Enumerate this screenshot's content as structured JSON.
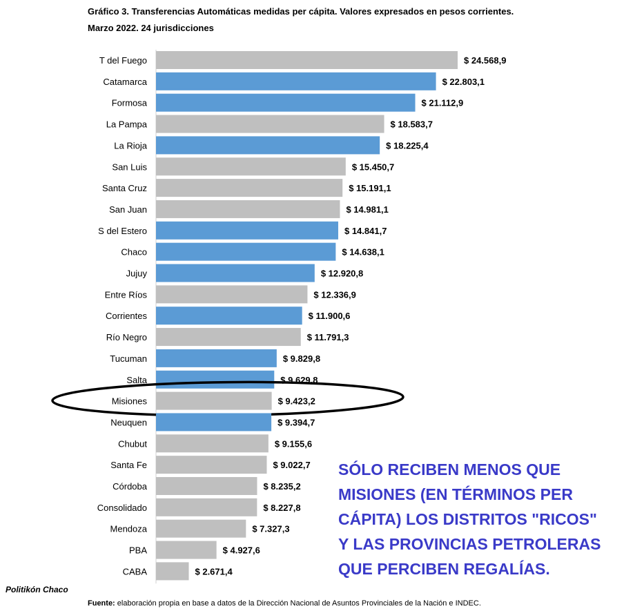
{
  "header": {
    "title_line1": "Gráfico 3. Transferencias Automáticas medidas per cápita. Valores expresados en pesos corrientes.",
    "title_line2": "Marzo 2022. 24 jurisdicciones"
  },
  "colors": {
    "gray": "#bfbfbf",
    "blue": "#5b9bd5",
    "annotation": "#3a3ac8"
  },
  "chart_data": {
    "type": "bar",
    "orientation": "horizontal",
    "title": "Gráfico 3. Transferencias Automáticas medidas per cápita. Valores expresados en pesos corrientes. Marzo 2022. 24 jurisdicciones",
    "categories": [
      "T del Fuego",
      "Catamarca",
      "Formosa",
      "La Pampa",
      "La Rioja",
      "San Luis",
      "Santa Cruz",
      "San Juan",
      "S del Estero",
      "Chaco",
      "Jujuy",
      "Entre Ríos",
      "Corrientes",
      "Río Negro",
      "Tucuman",
      "Salta",
      "Misiones",
      "Neuquen",
      "Chubut",
      "Santa Fe",
      "Córdoba",
      "Consolidado",
      "Mendoza",
      "PBA",
      "CABA"
    ],
    "values": [
      24568.9,
      22803.1,
      21112.9,
      18583.7,
      18225.4,
      15450.7,
      15191.1,
      14981.1,
      14841.7,
      14638.1,
      12920.8,
      12336.9,
      11900.6,
      11791.3,
      9829.8,
      9629.8,
      9423.2,
      9394.7,
      9155.6,
      9022.7,
      8235.2,
      8227.8,
      7327.3,
      4927.6,
      2671.4
    ],
    "value_labels": [
      "$ 24.568,9",
      "$ 22.803,1",
      "$ 21.112,9",
      "$ 18.583,7",
      "$ 18.225,4",
      "$ 15.450,7",
      "$ 15.191,1",
      "$ 14.981,1",
      "$ 14.841,7",
      "$ 14.638,1",
      "$ 12.920,8",
      "$ 12.336,9",
      "$ 11.900,6",
      "$ 11.791,3",
      "$ 9.829,8",
      "$ 9.629,8",
      "$ 9.423,2",
      "$ 9.394,7",
      "$ 9.155,6",
      "$ 9.022,7",
      "$ 8.235,2",
      "$ 8.227,8",
      "$ 7.327,3",
      "$ 4.927,6",
      "$ 2.671,4"
    ],
    "bar_colors": [
      "gray",
      "blue",
      "blue",
      "gray",
      "blue",
      "gray",
      "gray",
      "gray",
      "blue",
      "blue",
      "blue",
      "gray",
      "blue",
      "gray",
      "blue",
      "blue",
      "gray",
      "blue",
      "gray",
      "gray",
      "gray",
      "gray",
      "gray",
      "gray",
      "gray"
    ],
    "highlighted": "Misiones",
    "xlim": [
      0,
      24568.9
    ],
    "grid": false,
    "legend": "none"
  },
  "annotation": "SÓLO RECIBEN MENOS QUE\nMISIONES (EN TÉRMINOS PER\nCÁPITA) LOS DISTRITOS \"RICOS\"\nY LAS PROVINCIAS PETROLERAS\nQUE PERCIBEN REGALÍAS.",
  "brand": "Politikón Chaco",
  "source": {
    "label": "Fuente:",
    "text": " elaboración propia en base a datos de la Dirección Nacional de Asuntos Provinciales de la Nación e INDEC."
  }
}
